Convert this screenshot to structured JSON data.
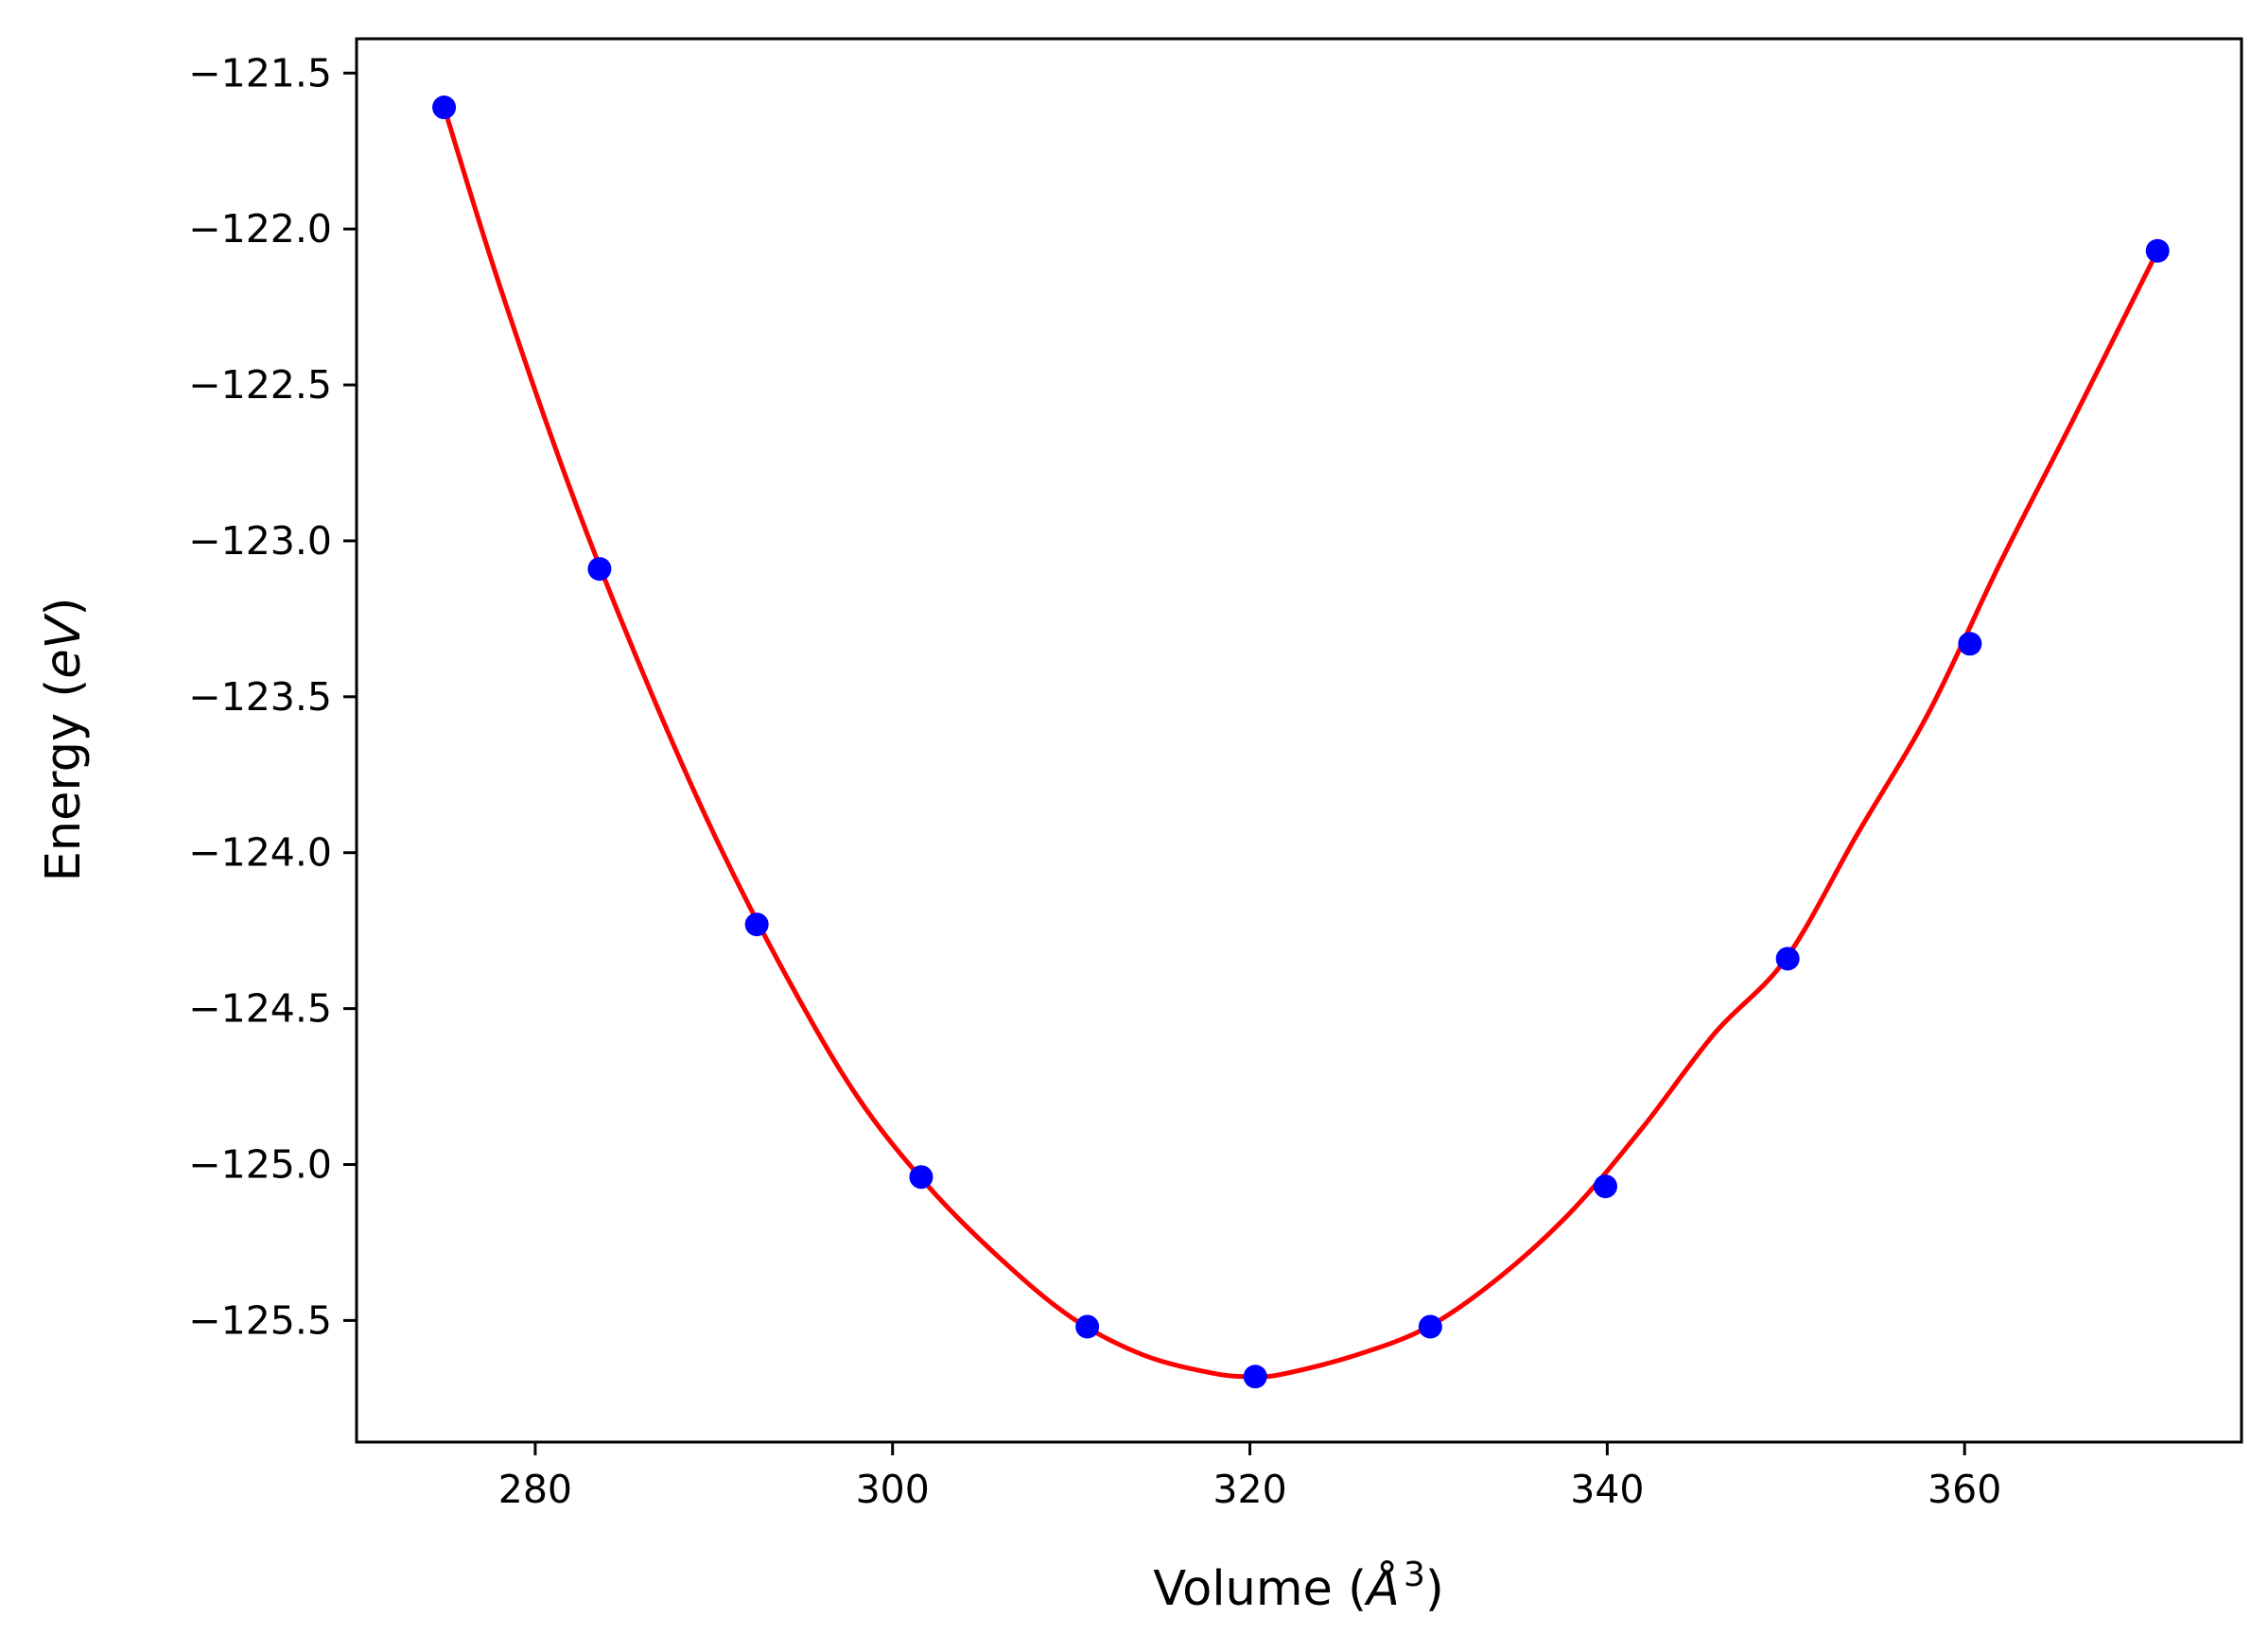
{
  "chart_data": {
    "type": "scatter",
    "xlabel_text": "Volume (",
    "xlabel_italic": "Å",
    "xlabel_sup": "3",
    "xlabel_close": ")",
    "ylabel_text": "Energy (",
    "ylabel_italic": "eV",
    "ylabel_close": ")",
    "xlim": [
      270,
      375.5
    ],
    "ylim": [
      -125.89,
      -121.39
    ],
    "xticks": [
      280,
      300,
      320,
      340,
      360
    ],
    "xtick_labels": [
      "280",
      "300",
      "320",
      "340",
      "360"
    ],
    "yticks": [
      -121.5,
      -122.0,
      -122.5,
      -123.0,
      -123.5,
      -124.0,
      -124.5,
      -125.0,
      -125.5
    ],
    "ytick_labels": [
      "−121.5",
      "−122.0",
      "−122.5",
      "−123.0",
      "−123.5",
      "−124.0",
      "−124.5",
      "−125.0",
      "−125.5"
    ],
    "grid": false,
    "series": [
      {
        "kind": "points",
        "color": "#0000ff",
        "x": [
          274.9,
          283.6,
          292.4,
          301.6,
          310.9,
          320.3,
          330.1,
          339.9,
          350.1,
          360.3,
          370.8
        ],
        "y": [
          -121.61,
          -123.09,
          -124.23,
          -125.04,
          -125.52,
          -125.68,
          -125.52,
          -125.07,
          -124.34,
          -123.33,
          -122.07
        ]
      },
      {
        "kind": "fit-curve",
        "color": "#ff0000",
        "x": [
          274.9,
          278,
          282,
          286,
          290,
          294,
          298,
          302,
          306,
          310,
          314,
          318,
          320.3,
          322,
          326,
          330,
          334,
          338,
          342,
          346,
          350,
          354,
          358,
          362,
          366,
          370.8
        ],
        "y": [
          -121.61,
          -122.18,
          -122.84,
          -123.42,
          -123.94,
          -124.39,
          -124.78,
          -125.07,
          -125.3,
          -125.49,
          -125.61,
          -125.67,
          -125.68,
          -125.67,
          -125.61,
          -125.52,
          -125.36,
          -125.15,
          -124.88,
          -124.58,
          -124.34,
          -123.94,
          -123.55,
          -123.07,
          -122.62,
          -122.07
        ]
      }
    ]
  }
}
